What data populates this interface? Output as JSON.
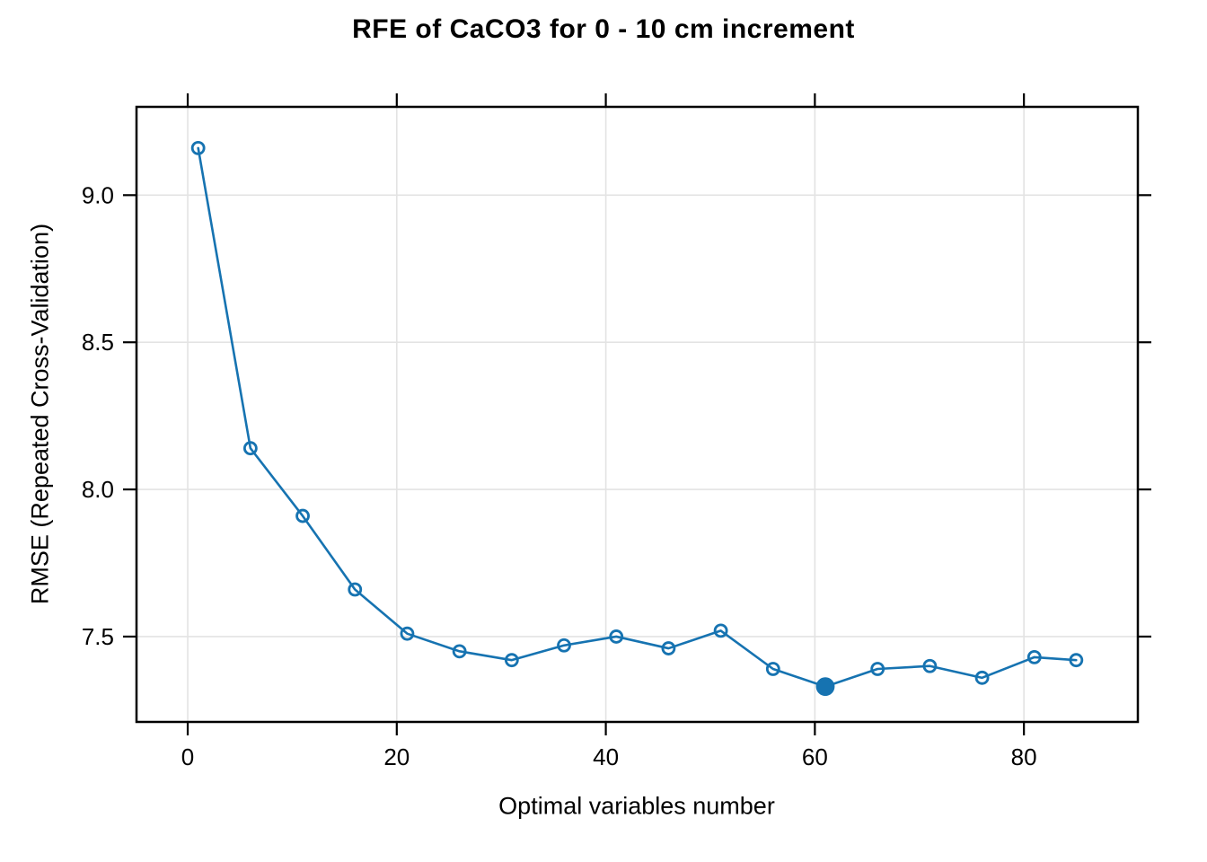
{
  "chart_data": {
    "type": "line",
    "title": "RFE of CaCO3 for 0 - 10 cm increment",
    "xlabel": "Optimal variables number",
    "ylabel": "RMSE (Repeated Cross-Validation)",
    "series_name": "RMSE (Repeated Cross-Validation)",
    "x": [
      1,
      6,
      11,
      16,
      21,
      26,
      31,
      36,
      41,
      46,
      51,
      56,
      61,
      66,
      71,
      76,
      81,
      85
    ],
    "y": [
      9.16,
      8.14,
      7.91,
      7.66,
      7.51,
      7.45,
      7.42,
      7.47,
      7.5,
      7.46,
      7.52,
      7.39,
      7.33,
      7.39,
      7.4,
      7.36,
      7.43,
      7.42
    ],
    "best_point": {
      "x": 61,
      "y": 7.33,
      "marker": "filled-circle"
    },
    "marker": "open-circle",
    "x_ticks": [
      0,
      20,
      40,
      60,
      80
    ],
    "x_tick_labels": [
      "0",
      "20",
      "40",
      "60",
      "80"
    ],
    "y_ticks": [
      7.5,
      8.0,
      8.5,
      9.0
    ],
    "y_tick_labels": [
      "7.5",
      "8.0",
      "8.5",
      "9.0"
    ],
    "xlim": [
      -4.9,
      90.9
    ],
    "ylim": [
      7.21,
      9.3
    ],
    "grid": true,
    "legend_position": "none",
    "tick_style": "outward-all-four-sides",
    "colors": {
      "line": "#1673b1",
      "marker": "#1673b1",
      "grid": "#e3e3e3",
      "axis": "#000000",
      "text": "#000000",
      "background": "#ffffff"
    }
  }
}
